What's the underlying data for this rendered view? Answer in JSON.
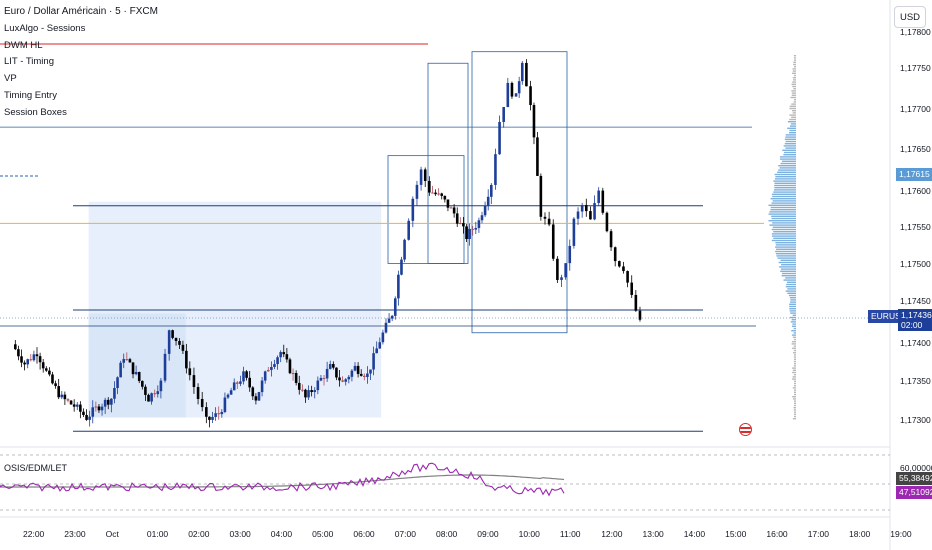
{
  "header": {
    "title": "Euro / Dollar Américain · 5 · FXCM",
    "indicators": [
      "LuxAlgo - Sessions",
      "DWM HL",
      "LIT - Timing",
      "VP",
      "Timing Entry",
      "Session Boxes"
    ],
    "currency": "USD"
  },
  "price_axis": {
    "ticks": [
      "1,17750",
      "1,17700",
      "1,17650",
      "1,17600",
      "1,17550",
      "1,17500",
      "1,17450",
      "1,17400",
      "1,17350",
      "1,17300"
    ],
    "top_tick": "1,17800",
    "current_symbol": "EURUSD",
    "current_price": "1,17436",
    "countdown": "02:00",
    "poc_price": "1,17615"
  },
  "time_axis": {
    "labels": [
      "22:00",
      "23:00",
      "Oct",
      "01:00",
      "02:00",
      "03:00",
      "04:00",
      "05:00",
      "06:00",
      "07:00",
      "08:00",
      "09:00",
      "10:00",
      "11:00",
      "12:00",
      "13:00",
      "14:00",
      "15:00",
      "16:00",
      "17:00",
      "18:00",
      "19:00"
    ]
  },
  "oscillator": {
    "name": "OSIS/EDM/LET",
    "top_value": "60,00000",
    "value_1": "55,38492",
    "value_2": "47,51092"
  },
  "colors": {
    "bull": "#1e3f99",
    "bear": "#000000",
    "doji": "#b2505a",
    "session_fill": "#dde9f9",
    "box_stroke": "#2962a8",
    "level_red": "#e05050",
    "level_orange": "#f0b030",
    "osc_purple": "#9c27b0",
    "osc_grey": "#808080",
    "volume_blue": "#6fa8dc",
    "volume_grey": "#b0b0b0"
  },
  "chart_data": {
    "type": "candlestick",
    "symbol": "EURUSD",
    "timeframe": "5",
    "x_range": [
      "21:30",
      "19:30"
    ],
    "y_range": [
      1.1728,
      1.1781
    ],
    "close_path": [
      [
        21.4,
        1.1741
      ],
      [
        21.7,
        1.17385
      ],
      [
        22.0,
        1.174
      ],
      [
        22.3,
        1.17365
      ],
      [
        22.6,
        1.1734
      ],
      [
        22.9,
        1.1733
      ],
      [
        23.2,
        1.17315
      ],
      [
        23.5,
        1.1733
      ],
      [
        23.8,
        1.1734
      ],
      [
        24.1,
        1.17395
      ],
      [
        24.4,
        1.1737
      ],
      [
        24.7,
        1.1734
      ],
      [
        25.0,
        1.1736
      ],
      [
        25.2,
        1.1743
      ],
      [
        25.45,
        1.1741
      ],
      [
        25.7,
        1.1737
      ],
      [
        25.9,
        1.1734
      ],
      [
        26.1,
        1.1731
      ],
      [
        26.4,
        1.1732
      ],
      [
        26.7,
        1.1735
      ],
      [
        27.0,
        1.1737
      ],
      [
        27.3,
        1.1734
      ],
      [
        27.6,
        1.1738
      ],
      [
        27.9,
        1.174
      ],
      [
        28.2,
        1.1737
      ],
      [
        28.5,
        1.1734
      ],
      [
        28.8,
        1.1736
      ],
      [
        29.1,
        1.1738
      ],
      [
        29.4,
        1.1736
      ],
      [
        29.7,
        1.1738
      ],
      [
        30.0,
        1.1737
      ],
      [
        30.3,
        1.17415
      ],
      [
        30.6,
        1.1745
      ],
      [
        30.9,
        1.1755
      ],
      [
        31.1,
        1.176
      ],
      [
        31.3,
        1.17635
      ],
      [
        31.5,
        1.1761
      ],
      [
        31.8,
        1.176
      ],
      [
        32.1,
        1.1758
      ],
      [
        32.4,
        1.1755
      ],
      [
        32.7,
        1.1757
      ],
      [
        33.0,
        1.1762
      ],
      [
        33.2,
        1.177
      ],
      [
        33.4,
        1.17745
      ],
      [
        33.6,
        1.1773
      ],
      [
        33.75,
        1.1778
      ],
      [
        33.95,
        1.1772
      ],
      [
        34.2,
        1.1758
      ],
      [
        34.4,
        1.1756
      ],
      [
        34.6,
        1.1749
      ],
      [
        34.8,
        1.1751
      ],
      [
        35.0,
        1.1757
      ],
      [
        35.2,
        1.1759
      ],
      [
        35.4,
        1.1757
      ],
      [
        35.6,
        1.1761
      ],
      [
        35.8,
        1.1756
      ],
      [
        36.0,
        1.1752
      ],
      [
        36.2,
        1.1751
      ],
      [
        36.4,
        1.1747
      ],
      [
        36.6,
        1.17437
      ]
    ],
    "session_boxes": [
      {
        "from": "23:15",
        "to": "06:20",
        "high": 1.17595,
        "low": 1.17315
      },
      {
        "from": "06:55",
        "to": "08:40",
        "high": 1.17655,
        "low": 1.17515
      },
      {
        "from": "08:00",
        "to": "09:00",
        "high": 1.17775,
        "low": 1.17515
      },
      {
        "from": "08:00",
        "to": "11:30",
        "high": 1.1779,
        "low": 1.17425
      }
    ],
    "levels": [
      1.17692,
      1.1759,
      1.17567,
      1.17435,
      1.17425,
      1.17297
    ],
    "volume_profile_poc": 1.17615
  }
}
